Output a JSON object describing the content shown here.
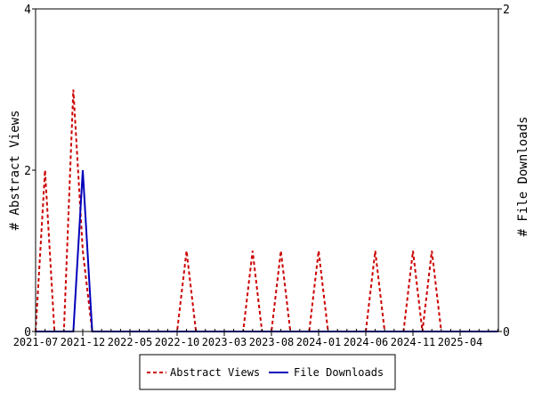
{
  "chart_data": {
    "type": "line",
    "title": "",
    "xlabel": "",
    "ylabel_left": "# Abstract Views",
    "ylabel_right": "# File Downloads",
    "start_month": "2021-07",
    "num_months": 50,
    "x_tick_labels": [
      "2021-07",
      "2021-12",
      "2022-05",
      "2022-10",
      "2023-03",
      "2023-08",
      "2024-01",
      "2024-06",
      "2024-11",
      "2025-04"
    ],
    "ylim_left": [
      0,
      4
    ],
    "yticks_left": [
      "0",
      "2",
      "4"
    ],
    "ylim_right": [
      0,
      2
    ],
    "yticks_right": [
      "0",
      "2"
    ],
    "legend_position": "bottom",
    "series": [
      {
        "name": "Abstract Views",
        "axis": "left",
        "color": "#cc0000",
        "style": "dashed",
        "values": [
          0,
          2,
          0,
          0,
          3,
          1,
          0,
          0,
          0,
          0,
          0,
          0,
          0,
          0,
          0,
          0,
          1,
          0,
          0,
          0,
          0,
          0,
          0,
          1,
          0,
          0,
          1,
          0,
          0,
          0,
          1,
          0,
          0,
          0,
          0,
          0,
          1,
          0,
          0,
          0,
          1,
          0,
          1,
          0,
          0,
          0,
          0,
          0,
          0,
          0
        ]
      },
      {
        "name": "File Downloads",
        "axis": "right",
        "color": "#0000bb",
        "style": "solid",
        "values": [
          0,
          0,
          0,
          0,
          0,
          1,
          0,
          0,
          0,
          0,
          0,
          0,
          0,
          0,
          0,
          0,
          0,
          0,
          0,
          0,
          0,
          0,
          0,
          0,
          0,
          0,
          0,
          0,
          0,
          0,
          0,
          0,
          0,
          0,
          0,
          0,
          0,
          0,
          0,
          0,
          0,
          0,
          0,
          0,
          0,
          0,
          0,
          0,
          0,
          0
        ]
      }
    ]
  }
}
